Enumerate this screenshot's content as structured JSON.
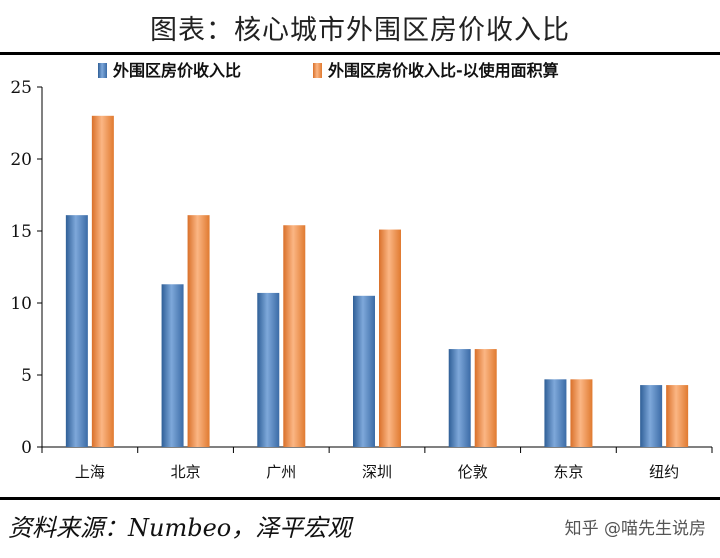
{
  "header": {
    "title": "图表：核心城市外围区房价收入比"
  },
  "footer": {
    "source": "资料来源：Numbeo，泽平宏观",
    "watermark": "知乎 @喵先生说房"
  },
  "chart_data": {
    "type": "bar",
    "title": "图表：核心城市外围区房价收入比",
    "categories": [
      "上海",
      "北京",
      "广州",
      "深圳",
      "伦敦",
      "东京",
      "纽约"
    ],
    "series": [
      {
        "name": "外围区房价收入比",
        "values": [
          16.1,
          11.3,
          10.7,
          10.5,
          6.8,
          4.7,
          4.3
        ],
        "color": "#4f81bd"
      },
      {
        "name": "外围区房价收入比-以使用面积算",
        "values": [
          23.0,
          16.1,
          15.4,
          15.1,
          6.8,
          4.7,
          4.3
        ],
        "color": "#f79646"
      }
    ],
    "ylim": [
      0,
      25
    ],
    "yticks": [
      0,
      5,
      10,
      15,
      20,
      25
    ],
    "grid": false,
    "legend": "top-center"
  }
}
